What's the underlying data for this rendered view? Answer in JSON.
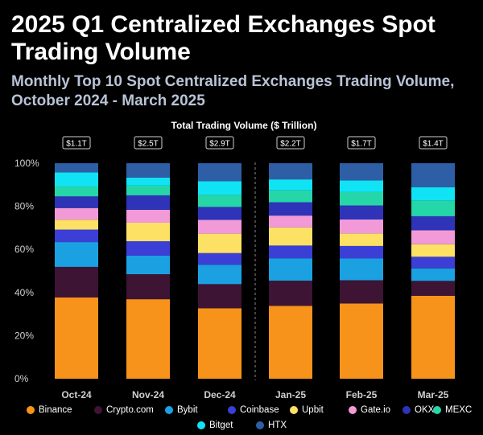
{
  "header": {
    "title": "2025 Q1 Centralized Exchanges Spot Trading Volume",
    "subtitle": "Monthly Top 10 Spot Centralized Exchanges Trading Volume, October 2024 - March 2025"
  },
  "chart_data": {
    "type": "bar",
    "stacked": true,
    "normalized": true,
    "title": "Total Trading Volume ($ Trillion)",
    "xlabel": "",
    "ylabel": "",
    "ylim": [
      0,
      100
    ],
    "y_ticks": [
      "0%",
      "20%",
      "40%",
      "60%",
      "80%",
      "100%"
    ],
    "grid": false,
    "legend_position": "bottom",
    "categories": [
      "Oct-24",
      "Nov-24",
      "Dec-24",
      "Jan-25",
      "Feb-25",
      "Mar-25"
    ],
    "totals": [
      "$1.1T",
      "$2.5T",
      "$2.9T",
      "$2.2T",
      "$1.7T",
      "$1.4T"
    ],
    "series": [
      {
        "name": "Binance",
        "color": "#F7931A",
        "values": [
          37.7,
          36.9,
          32.7,
          33.8,
          34.9,
          38.5
        ]
      },
      {
        "name": "Crypto.com",
        "color": "#3D1433",
        "values": [
          14.2,
          11.6,
          11.2,
          11.7,
          10.8,
          6.9
        ]
      },
      {
        "name": "Bybit",
        "color": "#1BA1E2",
        "values": [
          11.5,
          8.6,
          9.0,
          10.4,
          10.1,
          5.8
        ]
      },
      {
        "name": "Coinbase",
        "color": "#3B3FD6",
        "values": [
          5.8,
          6.7,
          5.4,
          5.9,
          5.8,
          5.4
        ]
      },
      {
        "name": "Upbit",
        "color": "#FCE165",
        "values": [
          4.6,
          8.6,
          9.0,
          8.4,
          5.8,
          5.8
        ]
      },
      {
        "name": "Gate.io",
        "color": "#F29AD8",
        "values": [
          5.4,
          6.0,
          6.4,
          5.5,
          6.5,
          6.5
        ]
      },
      {
        "name": "OKX",
        "color": "#2E33B8",
        "values": [
          5.4,
          6.7,
          6.0,
          6.2,
          6.5,
          6.5
        ]
      },
      {
        "name": "MEXC",
        "color": "#25D6A8",
        "values": [
          4.6,
          4.5,
          5.6,
          5.5,
          6.2,
          7.3
        ]
      },
      {
        "name": "Bitget",
        "color": "#10E4F4",
        "values": [
          6.5,
          3.7,
          6.4,
          5.1,
          5.4,
          6.2
        ]
      },
      {
        "name": "HTX",
        "color": "#2E5FA6",
        "values": [
          4.3,
          6.7,
          8.3,
          7.5,
          8.0,
          11.1
        ]
      }
    ]
  }
}
